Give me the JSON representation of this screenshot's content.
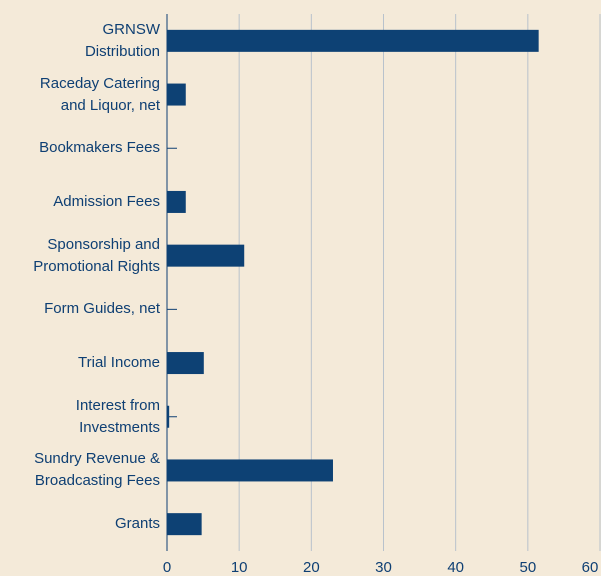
{
  "chart_data": {
    "type": "bar",
    "orientation": "horizontal",
    "categories": [
      "GRNSW\nDistribution",
      "Raceday Catering\nand Liquor, net",
      "Bookmakers Fees",
      "Admission Fees",
      "Sponsorship and\nPromotional Rights",
      "Form Guides, net",
      "Trial Income",
      "Interest from\nInvestments",
      "Sundry Revenue &\nBroadcasting Fees",
      "Grants"
    ],
    "values": [
      51.5,
      2.6,
      0,
      2.6,
      10.7,
      0,
      5.1,
      0.3,
      23.0,
      4.8
    ],
    "color": "#0d4174",
    "xlim": [
      0,
      60
    ],
    "xticks": [
      0,
      10,
      20,
      30,
      40,
      50,
      60
    ],
    "grid": true
  }
}
